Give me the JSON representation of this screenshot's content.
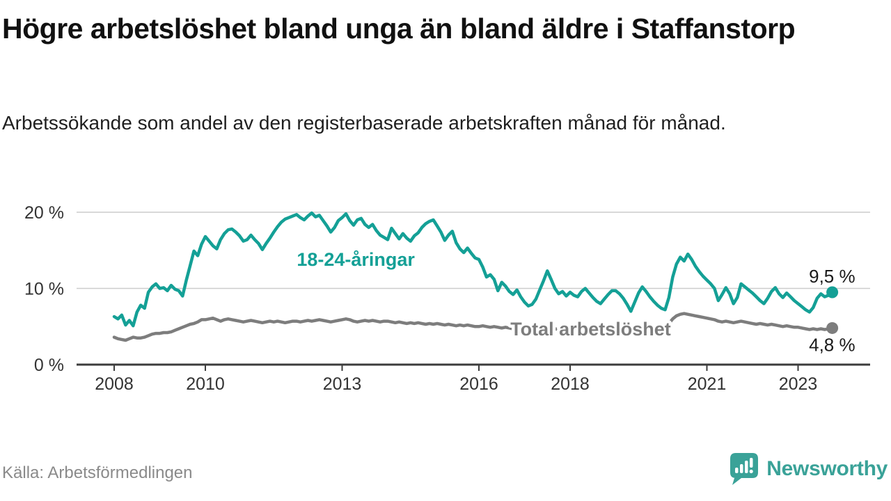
{
  "header": {
    "title": "Högre arbetslöshet bland unga än bland äldre i Staffanstorp",
    "subtitle": "Arbetssökande som andel av den registerbaserade arbetskraften månad för månad."
  },
  "footer": {
    "source": "Källa: Arbetsförmedlingen",
    "brand": "Newsworthy"
  },
  "colors": {
    "youth": "#14a096",
    "total": "#7d7d7d",
    "grid": "#cccccc",
    "axis": "#3c3c3c",
    "tick_text": "#333333",
    "annotation_text": "#1a1a1a",
    "brand": "#3aa298",
    "halo": "#ffffff"
  },
  "chart_data": {
    "type": "line",
    "title": "Högre arbetslöshet bland unga än bland äldre i Staffanstorp",
    "subtitle": "Arbetssökande som andel av den registerbaserade arbetskraften månad för månad.",
    "x_unit": "month",
    "x_start": "2008-01",
    "x_end": "2023-10",
    "ylim": [
      0,
      21.5
    ],
    "grid": true,
    "y_ticks": [
      {
        "value": 0,
        "label": "0 %"
      },
      {
        "value": 10,
        "label": "10 %"
      },
      {
        "value": 20,
        "label": "20 %"
      }
    ],
    "x_ticks": [
      {
        "year": 2008,
        "label": "2008"
      },
      {
        "year": 2010,
        "label": "2010"
      },
      {
        "year": 2013,
        "label": "2013"
      },
      {
        "year": 2016,
        "label": "2016"
      },
      {
        "year": 2018,
        "label": "2018"
      },
      {
        "year": 2021,
        "label": "2021"
      },
      {
        "year": 2023,
        "label": "2023"
      }
    ],
    "series": [
      {
        "name": "18-24-åringar",
        "color": "#14a096",
        "end_label": "9,5 %",
        "end_value": 9.5,
        "label_anchor": {
          "year": 2013.3,
          "value": 13.8
        },
        "end_label_offset": {
          "dx": 33,
          "dy": -14
        },
        "values": [
          6.3,
          6.0,
          6.5,
          5.2,
          5.8,
          5.1,
          6.9,
          7.8,
          7.4,
          9.5,
          10.2,
          10.6,
          10.0,
          10.1,
          9.7,
          10.4,
          9.9,
          9.7,
          9.0,
          11.1,
          13.0,
          14.9,
          14.3,
          15.8,
          16.8,
          16.2,
          15.6,
          15.2,
          16.4,
          17.2,
          17.7,
          17.8,
          17.4,
          16.9,
          16.2,
          16.4,
          17.0,
          16.4,
          15.9,
          15.1,
          15.9,
          16.6,
          17.4,
          18.1,
          18.7,
          19.1,
          19.3,
          19.5,
          19.7,
          19.3,
          19.0,
          19.5,
          19.9,
          19.4,
          19.6,
          18.9,
          18.2,
          17.4,
          18.0,
          18.9,
          19.3,
          19.8,
          18.9,
          18.3,
          19.0,
          19.2,
          18.4,
          18.0,
          18.4,
          17.6,
          17.0,
          16.7,
          16.4,
          17.9,
          17.2,
          16.5,
          17.2,
          16.6,
          16.2,
          16.9,
          17.3,
          18.0,
          18.5,
          18.8,
          19.0,
          18.2,
          17.4,
          16.3,
          17.0,
          17.5,
          16.0,
          15.2,
          14.7,
          15.3,
          14.6,
          14.0,
          13.8,
          12.8,
          11.5,
          11.8,
          11.2,
          9.7,
          10.8,
          10.3,
          9.6,
          9.2,
          9.8,
          8.9,
          8.2,
          7.7,
          7.9,
          8.6,
          9.8,
          11.0,
          12.3,
          11.2,
          10.0,
          9.3,
          9.6,
          9.0,
          9.5,
          9.1,
          8.9,
          9.6,
          10.0,
          9.4,
          8.8,
          8.3,
          8.0,
          8.6,
          9.2,
          9.7,
          9.7,
          9.3,
          8.7,
          7.9,
          7.0,
          8.2,
          9.4,
          10.2,
          9.6,
          8.9,
          8.3,
          7.8,
          7.4,
          7.2,
          8.8,
          11.5,
          13.2,
          14.1,
          13.6,
          14.5,
          13.8,
          12.9,
          12.2,
          11.6,
          11.1,
          10.6,
          10.0,
          8.4,
          9.2,
          10.1,
          9.3,
          8.0,
          8.8,
          10.6,
          10.2,
          9.8,
          9.4,
          8.9,
          8.4,
          8.0,
          8.7,
          9.6,
          10.1,
          9.3,
          8.8,
          9.4,
          8.9,
          8.4,
          8.0,
          7.6,
          7.2,
          6.9,
          7.5,
          8.7,
          9.3,
          8.9,
          9.1,
          9.5
        ]
      },
      {
        "name": "Total arbetslöshet",
        "color": "#7d7d7d",
        "end_label": "4,8 %",
        "end_value": 4.8,
        "label_anchor": {
          "year": 2018.45,
          "value": 4.65
        },
        "end_label_offset": {
          "dx": 33,
          "dy": 33
        },
        "values": [
          3.6,
          3.4,
          3.3,
          3.2,
          3.4,
          3.6,
          3.5,
          3.5,
          3.6,
          3.8,
          4.0,
          4.1,
          4.1,
          4.2,
          4.2,
          4.3,
          4.5,
          4.7,
          4.9,
          5.1,
          5.3,
          5.4,
          5.6,
          5.9,
          5.9,
          6.0,
          6.1,
          5.9,
          5.7,
          5.9,
          6.0,
          5.9,
          5.8,
          5.7,
          5.6,
          5.7,
          5.8,
          5.7,
          5.6,
          5.5,
          5.6,
          5.7,
          5.6,
          5.7,
          5.6,
          5.5,
          5.6,
          5.7,
          5.7,
          5.6,
          5.7,
          5.8,
          5.7,
          5.8,
          5.9,
          5.8,
          5.7,
          5.6,
          5.7,
          5.8,
          5.9,
          6.0,
          5.9,
          5.7,
          5.6,
          5.7,
          5.8,
          5.7,
          5.8,
          5.7,
          5.6,
          5.7,
          5.7,
          5.6,
          5.5,
          5.6,
          5.5,
          5.4,
          5.5,
          5.4,
          5.5,
          5.4,
          5.3,
          5.4,
          5.3,
          5.4,
          5.3,
          5.2,
          5.3,
          5.2,
          5.1,
          5.2,
          5.1,
          5.2,
          5.1,
          5.0,
          5.0,
          5.1,
          5.0,
          4.9,
          5.0,
          4.9,
          4.8,
          4.9,
          4.8,
          4.7,
          4.8,
          4.7,
          4.7,
          4.6,
          4.7,
          4.8,
          4.7,
          4.8,
          4.9,
          4.8,
          4.7,
          4.6,
          4.7,
          4.8,
          4.8,
          4.7,
          4.6,
          4.7,
          4.8,
          4.7,
          4.6,
          4.5,
          4.6,
          4.5,
          4.6,
          4.7,
          4.7,
          4.6,
          4.5,
          4.6,
          4.5,
          4.6,
          4.7,
          4.8,
          4.7,
          4.6,
          4.7,
          4.8,
          4.9,
          5.0,
          5.4,
          6.0,
          6.4,
          6.6,
          6.7,
          6.6,
          6.5,
          6.4,
          6.3,
          6.2,
          6.1,
          6.0,
          5.9,
          5.7,
          5.6,
          5.7,
          5.6,
          5.5,
          5.6,
          5.7,
          5.6,
          5.5,
          5.4,
          5.3,
          5.4,
          5.3,
          5.2,
          5.3,
          5.2,
          5.1,
          5.0,
          5.1,
          5.0,
          4.9,
          4.9,
          4.8,
          4.7,
          4.6,
          4.7,
          4.6,
          4.7,
          4.6,
          4.7,
          4.8
        ]
      }
    ]
  }
}
